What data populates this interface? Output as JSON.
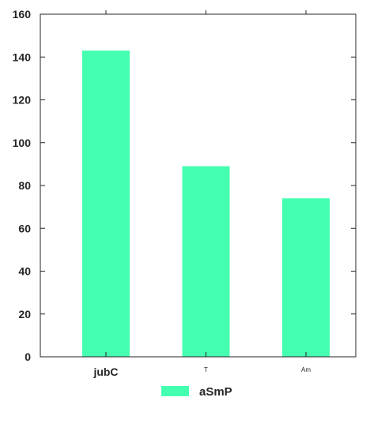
{
  "chart_data": {
    "type": "bar",
    "categories": [
      "jubC",
      "T",
      "Am"
    ],
    "series": [
      {
        "name": "aSmP",
        "values": [
          143,
          89,
          74
        ],
        "color": "#44ffb0"
      }
    ],
    "ylim": [
      0,
      160
    ],
    "yticks": [
      0,
      20,
      40,
      60,
      80,
      100,
      120,
      140,
      160
    ],
    "grid": false,
    "legend_position": "bottom-center"
  }
}
